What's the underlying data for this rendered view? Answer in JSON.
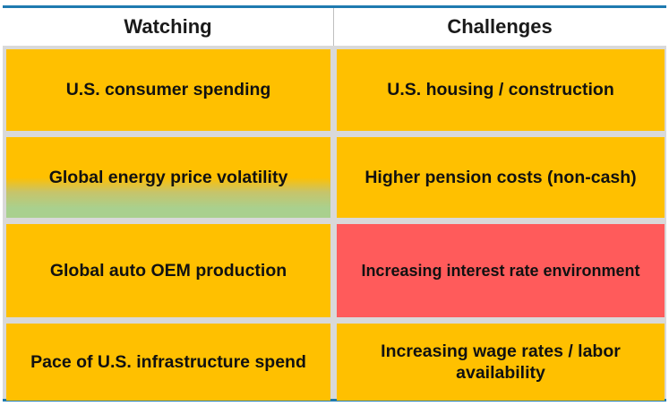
{
  "header": {
    "watching_label": "Watching",
    "challenges_label": "Challenges"
  },
  "rows": [
    {
      "watching": "U.S. consumer spending",
      "challenge": "U.S. housing / construction"
    },
    {
      "watching": "Global energy price volatility",
      "challenge": "Higher pension costs (non-cash)"
    },
    {
      "watching": "Global auto OEM production",
      "challenge": "Increasing interest rate environment"
    },
    {
      "watching": "Pace of U.S. infrastructure spend",
      "challenge": "Increasing wage rates / labor availability"
    }
  ],
  "colors": {
    "cell_default": "#ffc000",
    "cell_gradient_bottom": "#a9d08e",
    "cell_alert": "#ff5b5b",
    "rule": "#1f7ab0"
  }
}
